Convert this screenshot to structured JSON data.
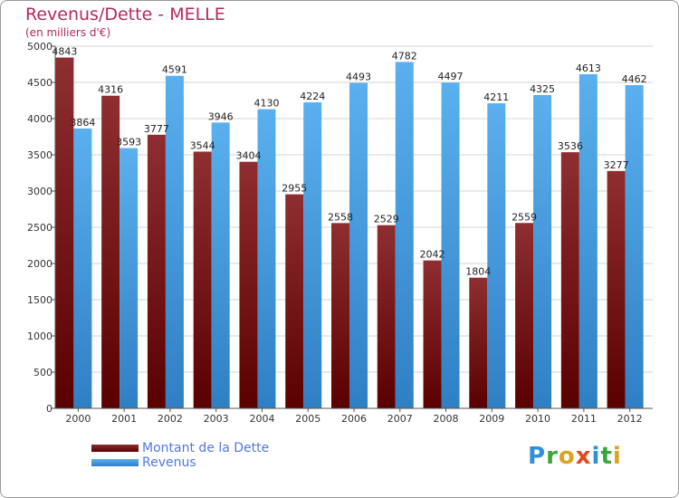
{
  "title": "Revenus/Dette - MELLE",
  "subtitle": "(en milliers d'€)",
  "logo": {
    "text": "Proxiti",
    "letters": [
      "P",
      "r",
      "o",
      "x",
      "i",
      "t",
      "i"
    ],
    "colors": [
      "#2f8fd8",
      "#3aa63a",
      "#e0a020",
      "#e24a1f",
      "#2f8fd8",
      "#3aa63a",
      "#e0a020"
    ]
  },
  "chart_data": {
    "type": "bar",
    "categories": [
      "2000",
      "2001",
      "2002",
      "2003",
      "2004",
      "2005",
      "2006",
      "2007",
      "2008",
      "2009",
      "2010",
      "2011",
      "2012"
    ],
    "series": [
      {
        "name": "Montant de la Dette",
        "color": "#7a1414",
        "values": [
          4843,
          4316,
          3777,
          3544,
          3404,
          2955,
          2558,
          2529,
          2042,
          1804,
          2559,
          3536,
          3277
        ]
      },
      {
        "name": "Revenus",
        "color": "#4ea6e6",
        "values": [
          3864,
          3593,
          4591,
          3946,
          4130,
          4224,
          4493,
          4782,
          4497,
          4211,
          4325,
          4613,
          4462
        ]
      }
    ],
    "ylim": [
      0,
      5000
    ],
    "yticks": [
      0,
      500,
      1000,
      1500,
      2000,
      2500,
      3000,
      3500,
      4000,
      4500,
      5000
    ],
    "grid": true,
    "legend": "bottom-left"
  }
}
